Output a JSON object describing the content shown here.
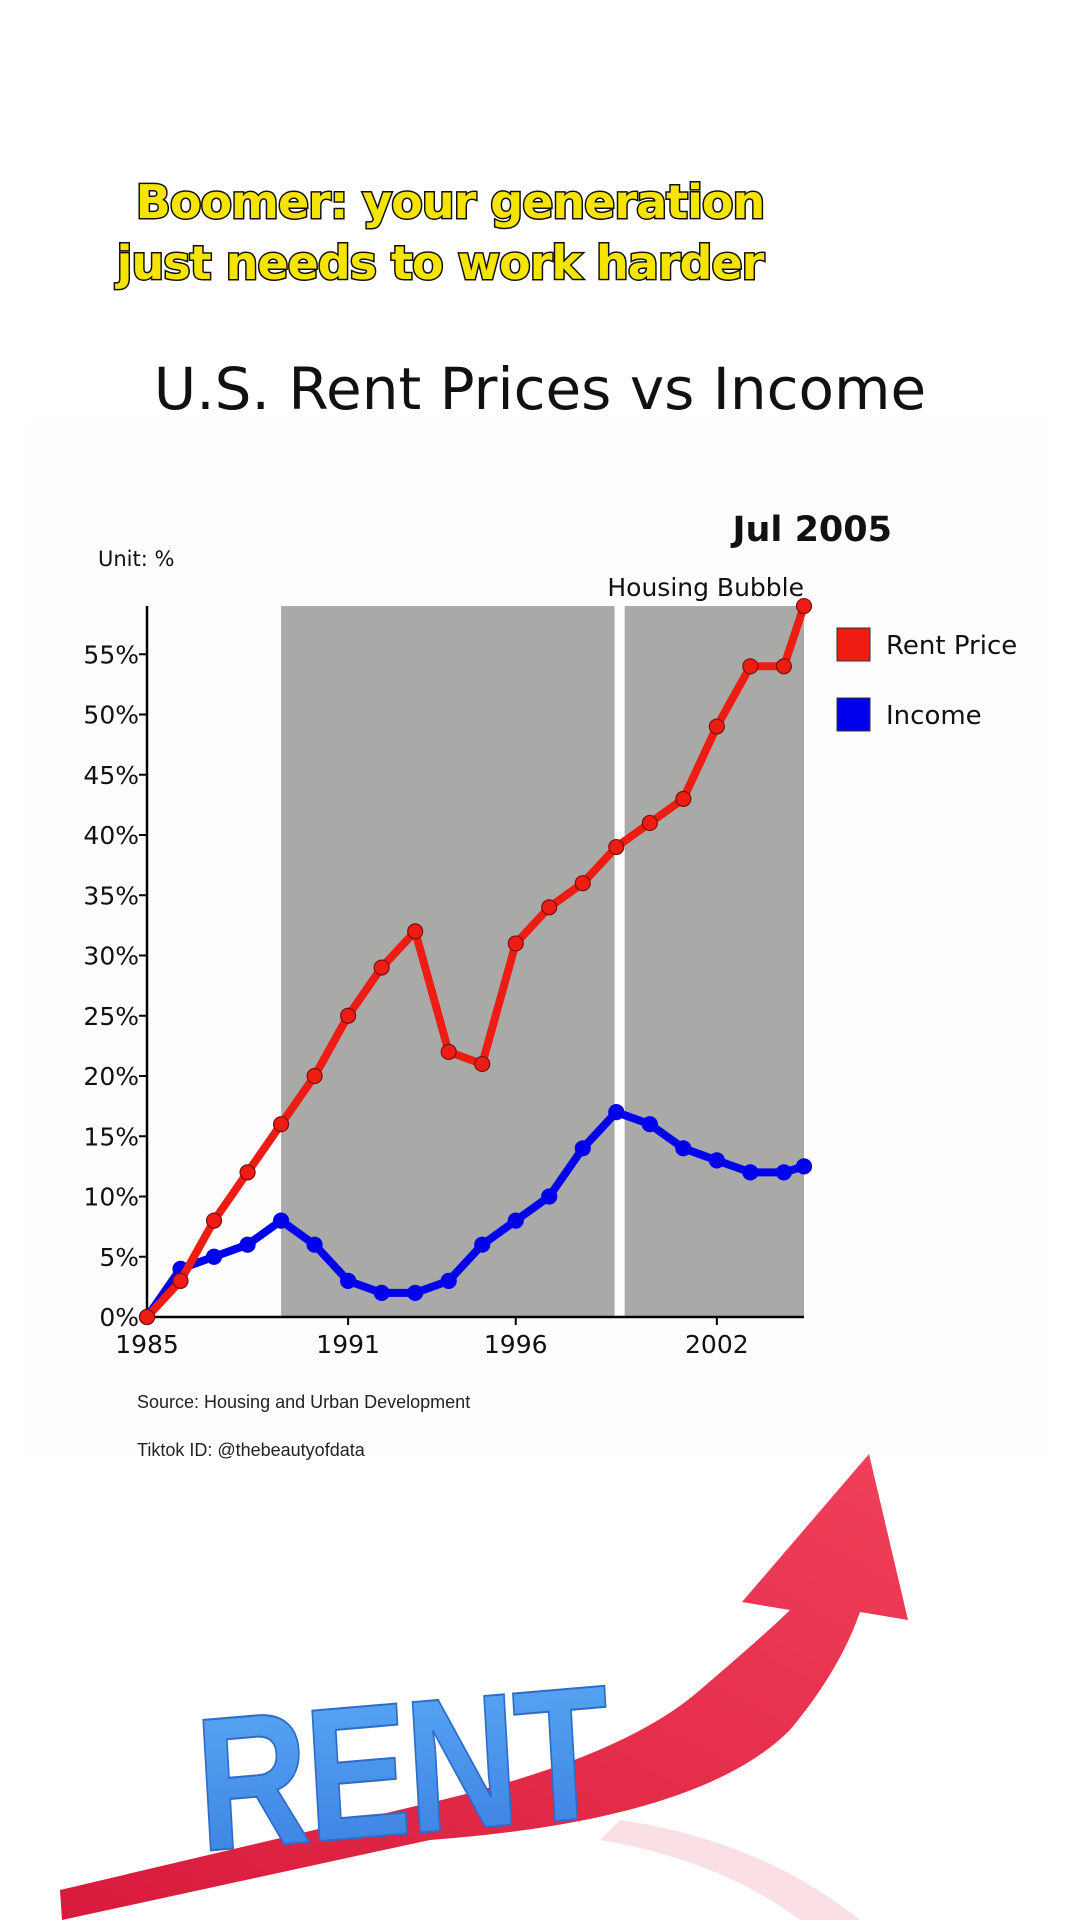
{
  "caption": {
    "line1": "Boomer: your generation",
    "line2": "just needs to work harder"
  },
  "header": {
    "title": "U.S. Rent Prices vs Income"
  },
  "chart_data": {
    "type": "line",
    "title": "",
    "date_label": "Jul 2005",
    "unit_label": "Unit: %",
    "annotation": "Housing Bubble",
    "x": [
      1985,
      1986,
      1987,
      1988,
      1989,
      1990,
      1991,
      1992,
      1993,
      1994,
      1995,
      1996,
      1997,
      1998,
      1999,
      2000,
      2001,
      2002,
      2003,
      2004,
      2004.6
    ],
    "series": [
      {
        "name": "Rent Price",
        "color": "#ee1c12",
        "values": [
          0,
          3,
          8,
          12,
          16,
          20,
          25,
          29,
          32,
          22,
          21,
          31,
          34,
          36,
          39,
          41,
          43,
          49,
          54,
          54,
          59
        ]
      },
      {
        "name": "Income",
        "color": "#0000ee",
        "values": [
          0,
          4,
          5,
          6,
          8,
          6,
          3,
          2,
          2,
          3,
          6,
          8,
          10,
          14,
          17,
          16,
          14,
          13,
          12,
          12,
          12.5
        ]
      }
    ],
    "x_ticks": [
      1985,
      1991,
      1996,
      2002
    ],
    "y_ticks": [
      0,
      5,
      10,
      15,
      20,
      25,
      30,
      35,
      40,
      45,
      50,
      55
    ],
    "xlim": [
      1985,
      2004.6
    ],
    "ylim": [
      0,
      59
    ],
    "shaded_regions": [
      [
        1989,
        1998.95
      ],
      [
        1999.25,
        2004.6
      ]
    ],
    "shade_color": "#a9aaa8",
    "grid": false,
    "legend_position": "right"
  },
  "footer": {
    "source": "Source: Housing and Urban Development",
    "tiktok": "Tiktok ID: @thebeautyofdata"
  },
  "art": {
    "word": "RENT"
  }
}
